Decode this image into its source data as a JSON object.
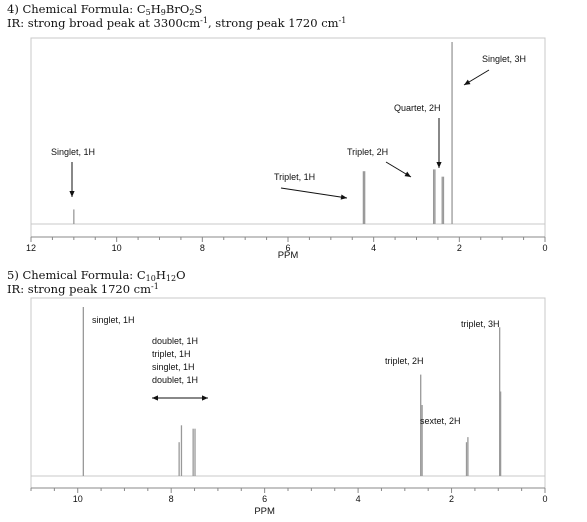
{
  "problems": [
    {
      "number": "4)",
      "formula_label": "Chemical Formula:",
      "formula": [
        [
          "C",
          ""
        ],
        [
          "5",
          "sub"
        ],
        [
          "H",
          ""
        ],
        [
          "9",
          "sub"
        ],
        [
          "BrO",
          ""
        ],
        [
          "2",
          "sub"
        ],
        [
          "S",
          ""
        ]
      ],
      "ir": [
        [
          "IR: strong broad peak at 3300cm",
          ""
        ],
        [
          "-1",
          "sup"
        ],
        [
          ", strong peak 1720 cm",
          ""
        ],
        [
          "-1",
          "sup"
        ]
      ]
    },
    {
      "number": "5)",
      "formula_label": "Chemical Formula:",
      "formula": [
        [
          "C",
          ""
        ],
        [
          "10",
          "sub"
        ],
        [
          "H",
          ""
        ],
        [
          "12",
          "sub"
        ],
        [
          "O",
          ""
        ]
      ],
      "ir": [
        [
          "IR: strong peak 1720 cm",
          ""
        ],
        [
          "-1",
          "sup"
        ]
      ]
    }
  ],
  "chart_data": [
    {
      "type": "line",
      "title": "",
      "xlabel": "PPM",
      "ylabel": "",
      "xlim": [
        12,
        0
      ],
      "x_reversed": true,
      "xticks": [
        12,
        10,
        8,
        6,
        4,
        2,
        0
      ],
      "grid": false,
      "peaks": [
        {
          "ppm": 11.0,
          "height": 0.08
        },
        {
          "ppm": 4.24,
          "height": 0.29
        },
        {
          "ppm": 4.21,
          "height": 0.29
        },
        {
          "ppm": 2.6,
          "height": 0.3
        },
        {
          "ppm": 2.57,
          "height": 0.3
        },
        {
          "ppm": 2.4,
          "height": 0.26
        },
        {
          "ppm": 2.37,
          "height": 0.26
        },
        {
          "ppm": 2.17,
          "height": 1.0
        }
      ],
      "annotations": [
        {
          "text": "Singlet, 1H",
          "ppm": 11.0
        },
        {
          "text": "Triplet, 1H",
          "ppm": 4.22
        },
        {
          "text": "Triplet, 2H",
          "ppm": 2.58
        },
        {
          "text": "Quartet, 2H",
          "ppm": 2.38
        },
        {
          "text": "Singlet, 3H",
          "ppm": 2.17
        }
      ]
    },
    {
      "type": "line",
      "title": "",
      "xlabel": "PPM",
      "ylabel": "",
      "xlim": [
        11,
        0
      ],
      "x_reversed": true,
      "xticks": [
        10,
        8,
        6,
        4,
        2,
        0
      ],
      "grid": false,
      "peaks": [
        {
          "ppm": 9.88,
          "height": 1.0
        },
        {
          "ppm": 7.83,
          "height": 0.2
        },
        {
          "ppm": 7.78,
          "height": 0.3
        },
        {
          "ppm": 7.53,
          "height": 0.28
        },
        {
          "ppm": 7.49,
          "height": 0.28
        },
        {
          "ppm": 2.66,
          "height": 0.6
        },
        {
          "ppm": 2.63,
          "height": 0.42
        },
        {
          "ppm": 1.68,
          "height": 0.2
        },
        {
          "ppm": 1.65,
          "height": 0.23
        },
        {
          "ppm": 0.97,
          "height": 0.88
        },
        {
          "ppm": 0.95,
          "height": 0.5
        }
      ],
      "annotations": [
        {
          "text": "singlet, 1H",
          "ppm": 9.88
        },
        {
          "text": "doublet, 1H"
        },
        {
          "text": "triplet, 1H"
        },
        {
          "text": "singlet, 1H"
        },
        {
          "text": "doublet, 1H"
        },
        {
          "text": "triplet, 2H",
          "ppm": 2.64
        },
        {
          "text": "sextet, 2H",
          "ppm": 1.66
        },
        {
          "text": "triplet, 3H",
          "ppm": 0.96
        }
      ]
    }
  ]
}
